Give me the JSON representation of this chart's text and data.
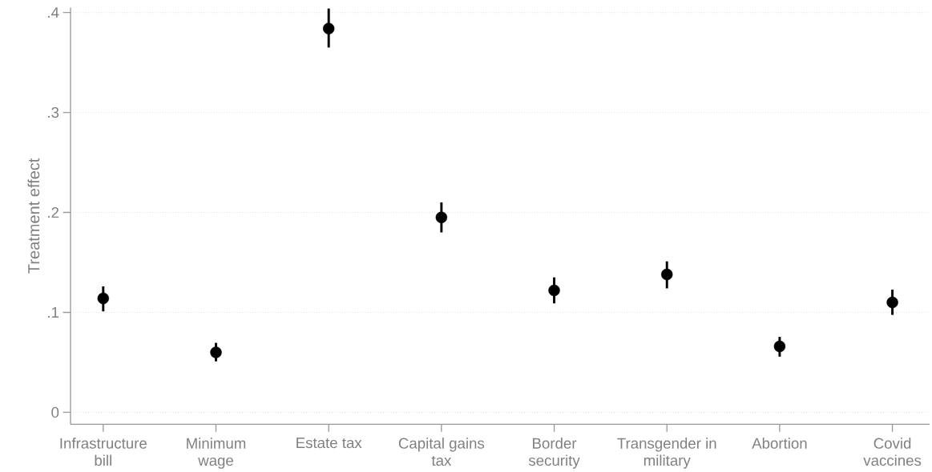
{
  "chart_data": {
    "type": "scatter",
    "ylabel": "Treatment effect",
    "categories": [
      "Infrastructure bill",
      "Minimum wage",
      "Estate tax",
      "Capital gains tax",
      "Border security",
      "Transgender in military",
      "Abortion",
      "Covid vaccines"
    ],
    "values": [
      0.114,
      0.06,
      0.384,
      0.195,
      0.122,
      0.138,
      0.066,
      0.11
    ],
    "errors": [
      [
        0.101,
        0.126
      ],
      [
        0.051,
        0.0695
      ],
      [
        0.365,
        0.404
      ],
      [
        0.18,
        0.21
      ],
      [
        0.109,
        0.135
      ],
      [
        0.124,
        0.151
      ],
      [
        0.0557,
        0.0755
      ],
      [
        0.0975,
        0.1227
      ]
    ],
    "color": "#000000",
    "ylim": [
      -0.012,
      0.405
    ],
    "yticks": [
      0,
      {
        "value": 0.1,
        "label": ".1"
      },
      {
        "value": 0.2,
        "label": ".2"
      },
      {
        "value": 0.3,
        "label": ".3"
      },
      {
        "value": 0.4,
        "label": ".4"
      }
    ],
    "grid": "y"
  }
}
